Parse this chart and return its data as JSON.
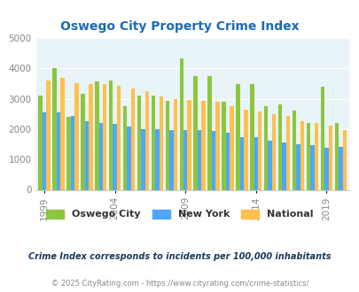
{
  "title": "Oswego City Property Crime Index",
  "years": [
    1999,
    2000,
    2001,
    2002,
    2003,
    2004,
    2005,
    2006,
    2007,
    2008,
    2009,
    2010,
    2011,
    2012,
    2013,
    2014,
    2015,
    2016,
    2017,
    2018,
    2019,
    2020
  ],
  "oswego": [
    3100,
    4020,
    2400,
    3150,
    3580,
    3600,
    2750,
    3100,
    3090,
    2920,
    4330,
    3750,
    3750,
    2890,
    3480,
    3480,
    2750,
    2800,
    2600,
    2190,
    3380,
    2200
  ],
  "newyork": [
    2550,
    2550,
    2420,
    2270,
    2200,
    2170,
    2090,
    2010,
    2010,
    1970,
    1970,
    1960,
    1950,
    1870,
    1720,
    1720,
    1620,
    1560,
    1500,
    1470,
    1390,
    1400
  ],
  "national": [
    3600,
    3680,
    3500,
    3490,
    3480,
    3420,
    3340,
    3240,
    3060,
    2980,
    2960,
    2930,
    2900,
    2750,
    2630,
    2580,
    2480,
    2440,
    2250,
    2210,
    2110,
    1960
  ],
  "color_oswego": "#8cc63f",
  "color_newyork": "#4da6ff",
  "color_national": "#ffc04d",
  "bg_color": "#e8f4f8",
  "ylim": [
    0,
    5000
  ],
  "yticks": [
    0,
    1000,
    2000,
    3000,
    4000,
    5000
  ],
  "xlabel_ticks": [
    1999,
    2004,
    2009,
    2014,
    2019
  ],
  "footnote1": "Crime Index corresponds to incidents per 100,000 inhabitants",
  "footnote2": "© 2025 CityRating.com - https://www.cityrating.com/crime-statistics/",
  "legend_labels": [
    "Oswego City",
    "New York",
    "National"
  ],
  "title_color": "#1a6cb5",
  "footnote1_color": "#1a3a5c",
  "footnote2_color": "#888888"
}
